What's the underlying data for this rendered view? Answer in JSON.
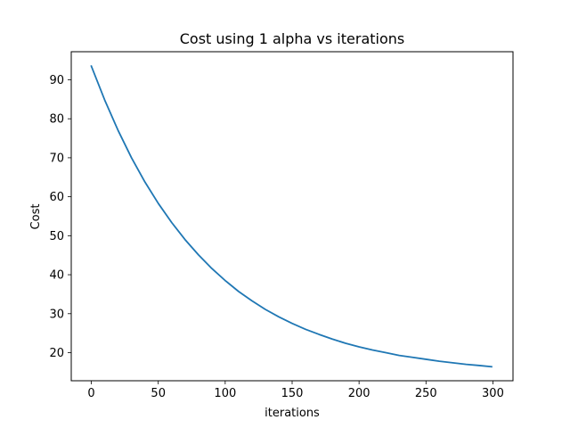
{
  "chart_data": {
    "type": "line",
    "title": "Cost using 1 alpha vs iterations",
    "xlabel": "iterations",
    "ylabel": "Cost",
    "xlim": [
      -15,
      315
    ],
    "ylim": [
      12.8,
      97.2
    ],
    "xticks": [
      0,
      50,
      100,
      150,
      200,
      250,
      300
    ],
    "yticks": [
      20,
      30,
      40,
      50,
      60,
      70,
      80,
      90
    ],
    "grid": false,
    "legend": null,
    "series": [
      {
        "color": "#1f77b4",
        "x": [
          0,
          10,
          20,
          30,
          40,
          50,
          60,
          70,
          80,
          90,
          100,
          110,
          120,
          130,
          140,
          150,
          160,
          170,
          180,
          190,
          200,
          210,
          220,
          230,
          240,
          250,
          260,
          270,
          280,
          290,
          299
        ],
        "y": [
          93.5,
          84.8,
          77.0,
          70.0,
          63.8,
          58.3,
          53.4,
          49.0,
          45.1,
          41.6,
          38.5,
          35.7,
          33.3,
          31.1,
          29.2,
          27.5,
          26.0,
          24.7,
          23.5,
          22.4,
          21.5,
          20.7,
          20.0,
          19.3,
          18.8,
          18.3,
          17.8,
          17.4,
          17.0,
          16.7,
          16.4
        ]
      }
    ]
  }
}
